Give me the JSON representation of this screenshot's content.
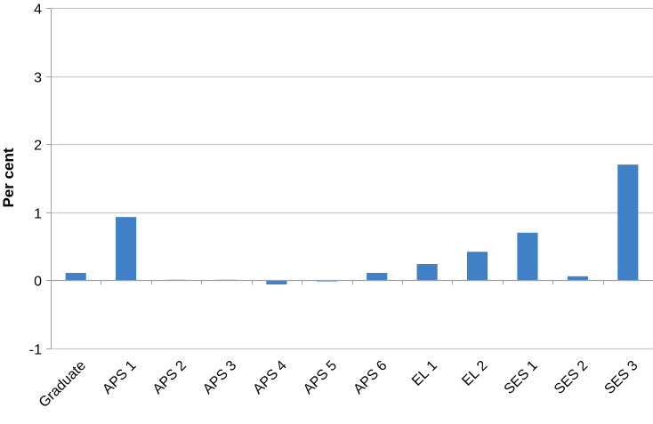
{
  "chart_data": {
    "type": "bar",
    "title": "",
    "xlabel": "",
    "ylabel": "Per cent",
    "ylim": [
      -1,
      4
    ],
    "yticks": [
      -1,
      0,
      1,
      2,
      3,
      4
    ],
    "grid": true,
    "legend": "none",
    "categories": [
      "Graduate",
      "APS 1",
      "APS 2",
      "APS 3",
      "APS 4",
      "APS 5",
      "APS 6",
      "EL 1",
      "EL 2",
      "SES 1",
      "SES 2",
      "SES 3"
    ],
    "values": [
      0.11,
      0.93,
      0.0,
      0.0,
      -0.06,
      -0.01,
      0.11,
      0.24,
      0.42,
      0.7,
      0.06,
      1.7
    ],
    "colors": {
      "bar": "#4080C6",
      "grid": "#C8C8C8",
      "axis": "#A0A0A0"
    }
  }
}
